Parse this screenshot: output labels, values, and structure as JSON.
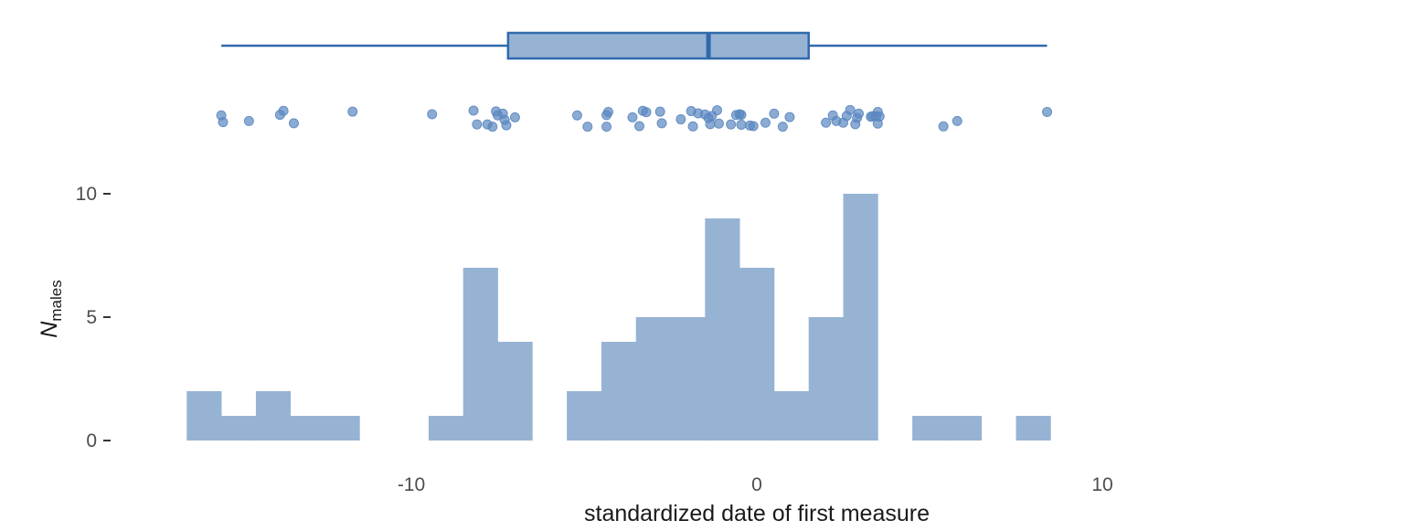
{
  "chart_data": {
    "type": "histogram",
    "title": "",
    "xlabel": "standardized date of first measure",
    "ylabel": {
      "main": "N",
      "subscript": "males"
    },
    "xlim": [
      -16.5,
      8.5
    ],
    "ylim": [
      0,
      10
    ],
    "x_ticks": [
      -10,
      0,
      10
    ],
    "y_ticks": [
      0,
      5,
      10
    ],
    "x_tick_labels": [
      "-10",
      "0",
      "10"
    ],
    "y_tick_labels": [
      "0",
      "5",
      "10"
    ],
    "grid": false,
    "colors": {
      "fill": "#97b3d4",
      "stroke": "#2f6aab",
      "point": "#5b88c0",
      "tick_text": "#4d4d4d",
      "title_text": "#1a1a1a"
    },
    "histogram": {
      "bin_width": 1,
      "bins": [
        {
          "x0": -16.5,
          "x1": -15.5,
          "count": 2
        },
        {
          "x0": -15.5,
          "x1": -14.5,
          "count": 1
        },
        {
          "x0": -14.5,
          "x1": -13.5,
          "count": 2
        },
        {
          "x0": -13.5,
          "x1": -12.5,
          "count": 1
        },
        {
          "x0": -12.5,
          "x1": -11.5,
          "count": 1
        },
        {
          "x0": -11.5,
          "x1": -10.5,
          "count": 0
        },
        {
          "x0": -10.5,
          "x1": -9.5,
          "count": 0
        },
        {
          "x0": -9.5,
          "x1": -8.5,
          "count": 1
        },
        {
          "x0": -8.5,
          "x1": -7.5,
          "count": 7
        },
        {
          "x0": -7.5,
          "x1": -6.5,
          "count": 4
        },
        {
          "x0": -6.5,
          "x1": -5.5,
          "count": 0
        },
        {
          "x0": -5.5,
          "x1": -4.5,
          "count": 2
        },
        {
          "x0": -4.5,
          "x1": -3.5,
          "count": 4
        },
        {
          "x0": -3.5,
          "x1": -2.5,
          "count": 5
        },
        {
          "x0": -2.5,
          "x1": -1.5,
          "count": 5
        },
        {
          "x0": -1.5,
          "x1": -0.5,
          "count": 9
        },
        {
          "x0": -0.5,
          "x1": 0.5,
          "count": 7
        },
        {
          "x0": 0.5,
          "x1": 1.5,
          "count": 2
        },
        {
          "x0": 1.5,
          "x1": 2.5,
          "count": 5
        },
        {
          "x0": 2.5,
          "x1": 3.5,
          "count": 10
        },
        {
          "x0": 3.5,
          "x1": 4.5,
          "count": 0
        },
        {
          "x0": 4.5,
          "x1": 5.5,
          "count": 1
        },
        {
          "x0": 5.5,
          "x1": 6.5,
          "count": 1
        },
        {
          "x0": 6.5,
          "x1": 7.5,
          "count": 0
        },
        {
          "x0": 7.5,
          "x1": 8.5,
          "count": 1
        }
      ]
    },
    "boxplot": {
      "min": -15.5,
      "q1": -7.2,
      "median": -1.4,
      "q3": 1.5,
      "max": 8.4
    },
    "jitter_points": [
      {
        "x": -15.5,
        "j": 0.45
      },
      {
        "x": -15.45,
        "j": -0.75
      },
      {
        "x": -14.7,
        "j": -0.55
      },
      {
        "x": -13.7,
        "j": 1.25
      },
      {
        "x": -13.8,
        "j": 0.55
      },
      {
        "x": -13.4,
        "j": -0.95
      },
      {
        "x": -11.7,
        "j": 1.1
      },
      {
        "x": -9.4,
        "j": 0.65
      },
      {
        "x": -8.2,
        "j": 1.3
      },
      {
        "x": -8.1,
        "j": -1.15
      },
      {
        "x": -7.8,
        "j": -1.15
      },
      {
        "x": -7.65,
        "j": -1.55
      },
      {
        "x": -7.55,
        "j": 1.15
      },
      {
        "x": -7.5,
        "j": 0.45
      },
      {
        "x": -7.35,
        "j": 0.75
      },
      {
        "x": -7.3,
        "j": -0.35
      },
      {
        "x": -7.25,
        "j": -1.3
      },
      {
        "x": -7.0,
        "j": 0.1
      },
      {
        "x": -5.2,
        "j": 0.45
      },
      {
        "x": -4.9,
        "j": -1.55
      },
      {
        "x": -4.3,
        "j": 1.05
      },
      {
        "x": -4.35,
        "j": 0.5
      },
      {
        "x": -4.35,
        "j": -1.55
      },
      {
        "x": -3.6,
        "j": 0.1
      },
      {
        "x": -3.3,
        "j": 1.25
      },
      {
        "x": -3.2,
        "j": 1.0
      },
      {
        "x": -3.4,
        "j": -1.45
      },
      {
        "x": -2.8,
        "j": 1.1
      },
      {
        "x": -2.75,
        "j": -0.95
      },
      {
        "x": -2.2,
        "j": -0.25
      },
      {
        "x": -1.9,
        "j": 1.2
      },
      {
        "x": -1.85,
        "j": -1.5
      },
      {
        "x": -1.7,
        "j": 0.8
      },
      {
        "x": -1.5,
        "j": 0.6
      },
      {
        "x": -1.4,
        "j": 0.0
      },
      {
        "x": -1.35,
        "j": -1.1
      },
      {
        "x": -1.3,
        "j": 0.35
      },
      {
        "x": -1.15,
        "j": 1.35
      },
      {
        "x": -1.1,
        "j": -1.0
      },
      {
        "x": -0.75,
        "j": -1.15
      },
      {
        "x": -0.6,
        "j": 0.5
      },
      {
        "x": -0.5,
        "j": 0.65
      },
      {
        "x": -0.45,
        "j": 0.55
      },
      {
        "x": -0.45,
        "j": -1.2
      },
      {
        "x": -0.2,
        "j": -1.35
      },
      {
        "x": -0.1,
        "j": -1.45
      },
      {
        "x": 0.25,
        "j": -0.85
      },
      {
        "x": 0.5,
        "j": 0.75
      },
      {
        "x": 0.75,
        "j": -1.55
      },
      {
        "x": 0.95,
        "j": 0.15
      },
      {
        "x": 2.0,
        "j": -0.85
      },
      {
        "x": 2.2,
        "j": 0.45
      },
      {
        "x": 2.3,
        "j": -0.55
      },
      {
        "x": 2.5,
        "j": -0.85
      },
      {
        "x": 2.6,
        "j": 0.35
      },
      {
        "x": 2.7,
        "j": 1.4
      },
      {
        "x": 2.85,
        "j": -1.1
      },
      {
        "x": 2.9,
        "j": 0.0
      },
      {
        "x": 2.95,
        "j": 0.75
      },
      {
        "x": 3.3,
        "j": 0.2
      },
      {
        "x": 3.35,
        "j": 0.3
      },
      {
        "x": 3.45,
        "j": 0.3
      },
      {
        "x": 3.5,
        "j": 1.05
      },
      {
        "x": 3.55,
        "j": 0.25
      },
      {
        "x": 3.5,
        "j": -1.0
      },
      {
        "x": 5.4,
        "j": -1.5
      },
      {
        "x": 5.8,
        "j": -0.55
      },
      {
        "x": 8.4,
        "j": 1.05
      }
    ]
  }
}
